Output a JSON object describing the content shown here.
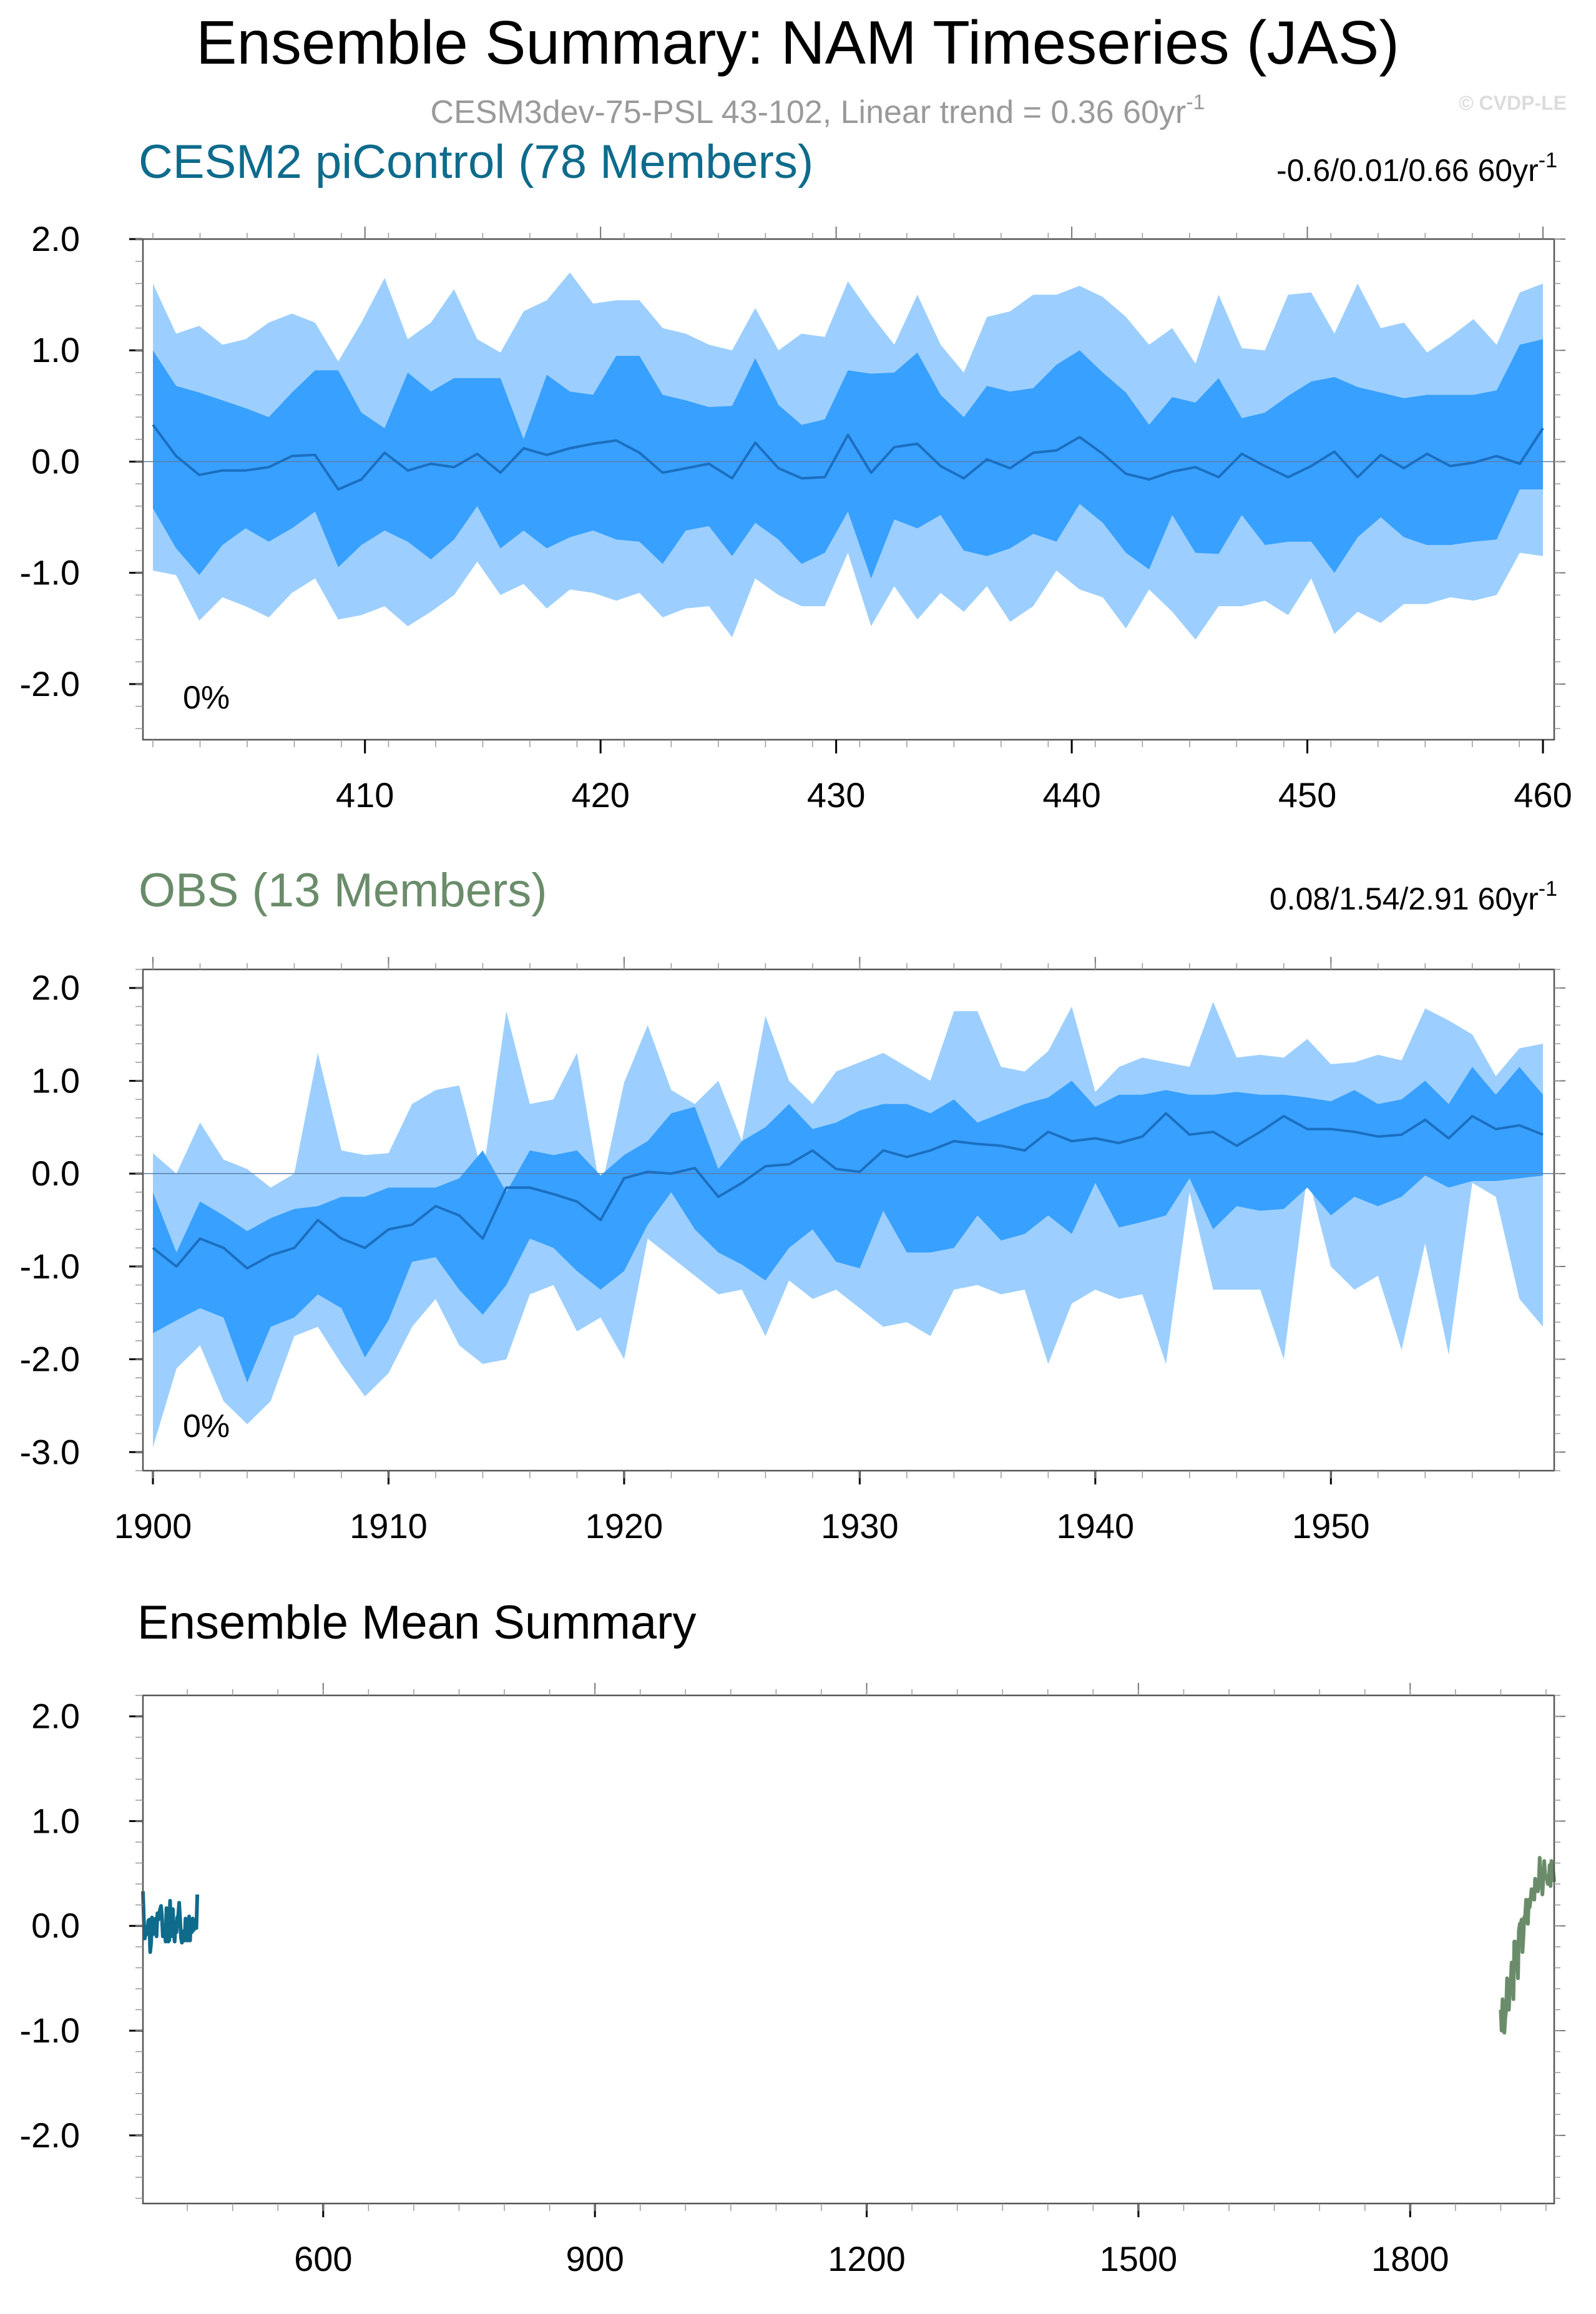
{
  "title": "Ensemble Summary: NAM Timeseries (JAS)",
  "subtitle": "CESM3dev-75-PSL 43-102, Linear trend = 0.36 60yr",
  "subtitle_sup": "-1",
  "watermark": "© CVDP-LE",
  "colors": {
    "outer_band": "#9ccfff",
    "inner_band": "#38a0ff",
    "mean_line": "#1b6fc0",
    "cesm_title": "#0e6b8c",
    "obs_title": "#6a8c6a",
    "axis": "#000000",
    "subtitle": "#9a9a9a"
  },
  "chart_data": [
    {
      "type": "area",
      "id": "panel1",
      "title": "CESM2 piControl (78 Members)",
      "trend_label": "-0.6/0.01/0.66 60yr",
      "trend_sup": "-1",
      "percent_label": "0%",
      "xlim": [
        401,
        460
      ],
      "ylim": [
        -2.5,
        2.0
      ],
      "xticks": [
        410,
        420,
        430,
        440,
        450,
        460
      ],
      "yticks": [
        2.0,
        1.0,
        0.0,
        -1.0,
        -2.0
      ],
      "ytick_labels": [
        "2.0",
        "1.0",
        "0.0",
        "-1.0",
        "-2.0"
      ],
      "x_start": 401,
      "mean": [
        0.33,
        0.05,
        -0.12,
        -0.08,
        -0.08,
        -0.05,
        0.05,
        0.06,
        -0.25,
        -0.16,
        0.08,
        -0.08,
        -0.02,
        -0.05,
        0.07,
        -0.1,
        0.12,
        0.06,
        0.12,
        0.16,
        0.19,
        0.08,
        -0.1,
        -0.06,
        -0.02,
        -0.15,
        0.17,
        -0.06,
        -0.15,
        -0.14,
        0.24,
        -0.1,
        0.13,
        0.16,
        -0.04,
        -0.15,
        0.02,
        -0.06,
        0.08,
        0.1,
        0.22,
        0.07,
        -0.11,
        -0.16,
        -0.09,
        -0.05,
        -0.14,
        0.07,
        -0.04,
        -0.14,
        -0.04,
        0.09,
        -0.14,
        0.06,
        -0.06,
        0.07,
        -0.04,
        -0.01,
        0.05,
        -0.02,
        0.3
      ],
      "inner_upper": [
        1.0,
        0.68,
        0.62,
        0.55,
        0.48,
        0.4,
        0.62,
        0.82,
        0.82,
        0.44,
        0.3,
        0.8,
        0.63,
        0.75,
        0.75,
        0.75,
        0.2,
        0.78,
        0.63,
        0.6,
        0.95,
        0.95,
        0.6,
        0.55,
        0.49,
        0.5,
        0.93,
        0.51,
        0.33,
        0.38,
        0.82,
        0.79,
        0.8,
        0.98,
        0.6,
        0.4,
        0.68,
        0.63,
        0.66,
        0.87,
        1.0,
        0.8,
        0.62,
        0.33,
        0.58,
        0.53,
        0.75,
        0.39,
        0.44,
        0.59,
        0.72,
        0.76,
        0.67,
        0.62,
        0.57,
        0.6,
        0.6,
        0.6,
        0.64,
        1.05,
        1.1
      ],
      "inner_lower": [
        -0.42,
        -0.78,
        -1.02,
        -0.75,
        -0.6,
        -0.72,
        -0.6,
        -0.45,
        -0.95,
        -0.75,
        -0.62,
        -0.72,
        -0.88,
        -0.7,
        -0.4,
        -0.78,
        -0.62,
        -0.78,
        -0.68,
        -0.62,
        -0.7,
        -0.72,
        -0.92,
        -0.62,
        -0.58,
        -0.85,
        -0.55,
        -0.7,
        -0.92,
        -0.82,
        -0.45,
        -1.05,
        -0.52,
        -0.6,
        -0.48,
        -0.8,
        -0.85,
        -0.78,
        -0.65,
        -0.72,
        -0.38,
        -0.55,
        -0.82,
        -0.97,
        -0.48,
        -0.82,
        -0.83,
        -0.48,
        -0.75,
        -0.72,
        -0.72,
        -1.0,
        -0.68,
        -0.5,
        -0.68,
        -0.75,
        -0.75,
        -0.72,
        -0.7,
        -0.25,
        -0.25
      ],
      "outer_upper": [
        1.6,
        1.15,
        1.22,
        1.05,
        1.1,
        1.25,
        1.33,
        1.25,
        0.9,
        1.25,
        1.65,
        1.1,
        1.25,
        1.55,
        1.1,
        0.98,
        1.35,
        1.45,
        1.7,
        1.42,
        1.45,
        1.45,
        1.2,
        1.15,
        1.05,
        1.0,
        1.38,
        1.0,
        1.15,
        1.12,
        1.62,
        1.32,
        1.05,
        1.5,
        1.05,
        0.8,
        1.3,
        1.35,
        1.5,
        1.5,
        1.58,
        1.48,
        1.3,
        1.05,
        1.2,
        0.88,
        1.5,
        1.02,
        1.0,
        1.5,
        1.52,
        1.15,
        1.6,
        1.2,
        1.25,
        0.98,
        1.12,
        1.28,
        1.05,
        1.52,
        1.6
      ],
      "outer_lower": [
        -0.98,
        -1.02,
        -1.43,
        -1.22,
        -1.3,
        -1.4,
        -1.18,
        -1.05,
        -1.42,
        -1.38,
        -1.3,
        -1.48,
        -1.35,
        -1.2,
        -0.9,
        -1.2,
        -1.1,
        -1.32,
        -1.15,
        -1.18,
        -1.25,
        -1.18,
        -1.4,
        -1.32,
        -1.3,
        -1.58,
        -1.05,
        -1.2,
        -1.3,
        -1.3,
        -0.82,
        -1.48,
        -1.12,
        -1.42,
        -1.18,
        -1.35,
        -1.12,
        -1.44,
        -1.3,
        -0.98,
        -1.15,
        -1.22,
        -1.5,
        -1.15,
        -1.35,
        -1.6,
        -1.3,
        -1.3,
        -1.25,
        -1.38,
        -1.05,
        -1.55,
        -1.35,
        -1.45,
        -1.28,
        -1.28,
        -1.22,
        -1.25,
        -1.2,
        -0.82,
        -0.85
      ]
    },
    {
      "type": "area",
      "id": "panel2",
      "title": "OBS (13 Members)",
      "trend_label": "0.08/1.54/2.91 60yr",
      "trend_sup": "-1",
      "percent_label": "0%",
      "xlim": [
        1900,
        1959
      ],
      "ylim": [
        -3.2,
        2.2
      ],
      "xticks": [
        1900,
        1910,
        1920,
        1930,
        1940,
        1950
      ],
      "yticks": [
        2.0,
        1.0,
        0.0,
        -1.0,
        -2.0,
        -3.0
      ],
      "ytick_labels": [
        "2.0",
        "1.0",
        "0.0",
        "-1.0",
        "-2.0",
        "-3.0"
      ],
      "x_start": 1900,
      "mean": [
        -0.8,
        -1.0,
        -0.7,
        -0.8,
        -1.02,
        -0.88,
        -0.8,
        -0.5,
        -0.7,
        -0.8,
        -0.6,
        -0.55,
        -0.35,
        -0.45,
        -0.7,
        -0.15,
        -0.15,
        -0.22,
        -0.3,
        -0.5,
        -0.05,
        0.02,
        0.0,
        0.06,
        -0.25,
        -0.1,
        0.08,
        0.1,
        0.25,
        0.05,
        0.02,
        0.25,
        0.18,
        0.25,
        0.35,
        0.32,
        0.3,
        0.25,
        0.45,
        0.35,
        0.38,
        0.33,
        0.4,
        0.65,
        0.42,
        0.45,
        0.3,
        0.45,
        0.62,
        0.48,
        0.48,
        0.45,
        0.4,
        0.42,
        0.58,
        0.38,
        0.62,
        0.48,
        0.52,
        0.42
      ],
      "inner_upper": [
        -0.2,
        -0.85,
        -0.3,
        -0.45,
        -0.62,
        -0.48,
        -0.38,
        -0.35,
        -0.25,
        -0.25,
        -0.15,
        -0.15,
        -0.15,
        -0.05,
        0.25,
        -0.2,
        0.25,
        0.2,
        0.25,
        -0.02,
        0.2,
        0.35,
        0.65,
        0.72,
        0.05,
        0.35,
        0.5,
        0.75,
        0.48,
        0.55,
        0.68,
        0.75,
        0.75,
        0.65,
        0.8,
        0.55,
        0.65,
        0.75,
        0.82,
        1.0,
        0.72,
        0.85,
        0.85,
        0.9,
        0.85,
        0.85,
        0.88,
        0.85,
        0.85,
        0.82,
        0.78,
        0.9,
        0.75,
        0.8,
        1.0,
        0.75,
        1.15,
        0.85,
        1.15,
        0.85
      ],
      "inner_lower": [
        -1.72,
        -1.58,
        -1.45,
        -1.55,
        -2.25,
        -1.65,
        -1.55,
        -1.3,
        -1.45,
        -1.98,
        -1.58,
        -0.95,
        -0.9,
        -1.25,
        -1.52,
        -1.2,
        -0.7,
        -0.8,
        -1.05,
        -1.25,
        -1.05,
        -0.55,
        -0.2,
        -0.6,
        -0.85,
        -0.98,
        -1.15,
        -0.8,
        -0.6,
        -0.95,
        -1.02,
        -0.4,
        -0.85,
        -0.85,
        -0.8,
        -0.45,
        -0.72,
        -0.65,
        -0.45,
        -0.65,
        -0.1,
        -0.58,
        -0.52,
        -0.45,
        -0.05,
        -0.6,
        -0.35,
        -0.4,
        -0.38,
        -0.15,
        -0.45,
        -0.25,
        -0.35,
        -0.25,
        -0.02,
        -0.15,
        -0.08,
        -0.08,
        -0.05,
        -0.02
      ],
      "outer_upper": [
        0.22,
        0.0,
        0.55,
        0.15,
        0.05,
        -0.15,
        0.0,
        1.3,
        0.25,
        0.2,
        0.22,
        0.75,
        0.9,
        0.95,
        -0.02,
        1.75,
        0.75,
        0.8,
        1.3,
        -0.2,
        0.98,
        1.6,
        0.9,
        0.75,
        1.0,
        0.35,
        1.7,
        1.0,
        0.75,
        1.1,
        1.2,
        1.3,
        1.15,
        1.0,
        1.75,
        1.75,
        1.15,
        1.1,
        1.32,
        1.8,
        0.88,
        1.15,
        1.25,
        1.2,
        1.15,
        1.85,
        1.25,
        1.28,
        1.25,
        1.45,
        1.18,
        1.2,
        1.28,
        1.22,
        1.78,
        1.65,
        1.5,
        1.05,
        1.35,
        1.4
      ],
      "outer_lower": [
        -2.95,
        -2.1,
        -1.85,
        -2.45,
        -2.7,
        -2.45,
        -1.75,
        -1.65,
        -2.05,
        -2.4,
        -2.15,
        -1.65,
        -1.35,
        -1.85,
        -2.05,
        -2.0,
        -1.3,
        -1.2,
        -1.7,
        -1.55,
        -2.0,
        -0.7,
        -0.9,
        -1.1,
        -1.3,
        -1.25,
        -1.75,
        -1.15,
        -1.35,
        -1.25,
        -1.45,
        -1.65,
        -1.6,
        -1.75,
        -1.25,
        -1.2,
        -1.3,
        -1.25,
        -2.05,
        -1.4,
        -1.25,
        -1.35,
        -1.3,
        -2.05,
        -0.2,
        -1.25,
        -1.25,
        -1.25,
        -2.0,
        0.0,
        -1.0,
        -1.25,
        -1.1,
        -1.9,
        -0.75,
        -1.95,
        -0.1,
        -0.25,
        -1.35,
        -1.65
      ]
    },
    {
      "type": "line",
      "id": "panel3",
      "title": "Ensemble Mean Summary",
      "xlim": [
        401,
        1959
      ],
      "ylim": [
        -2.65,
        2.2
      ],
      "xticks": [
        600,
        900,
        1200,
        1500,
        1800
      ],
      "yticks": [
        2.0,
        1.0,
        0.0,
        -1.0,
        -2.0
      ],
      "ytick_labels": [
        "2.0",
        "1.0",
        "0.0",
        "-1.0",
        "-2.0"
      ],
      "series": [
        {
          "name": "CESM2 piControl",
          "x_start": 401,
          "source": "panel1"
        },
        {
          "name": "OBS",
          "x_start": 1900,
          "source": "panel2"
        }
      ]
    }
  ]
}
